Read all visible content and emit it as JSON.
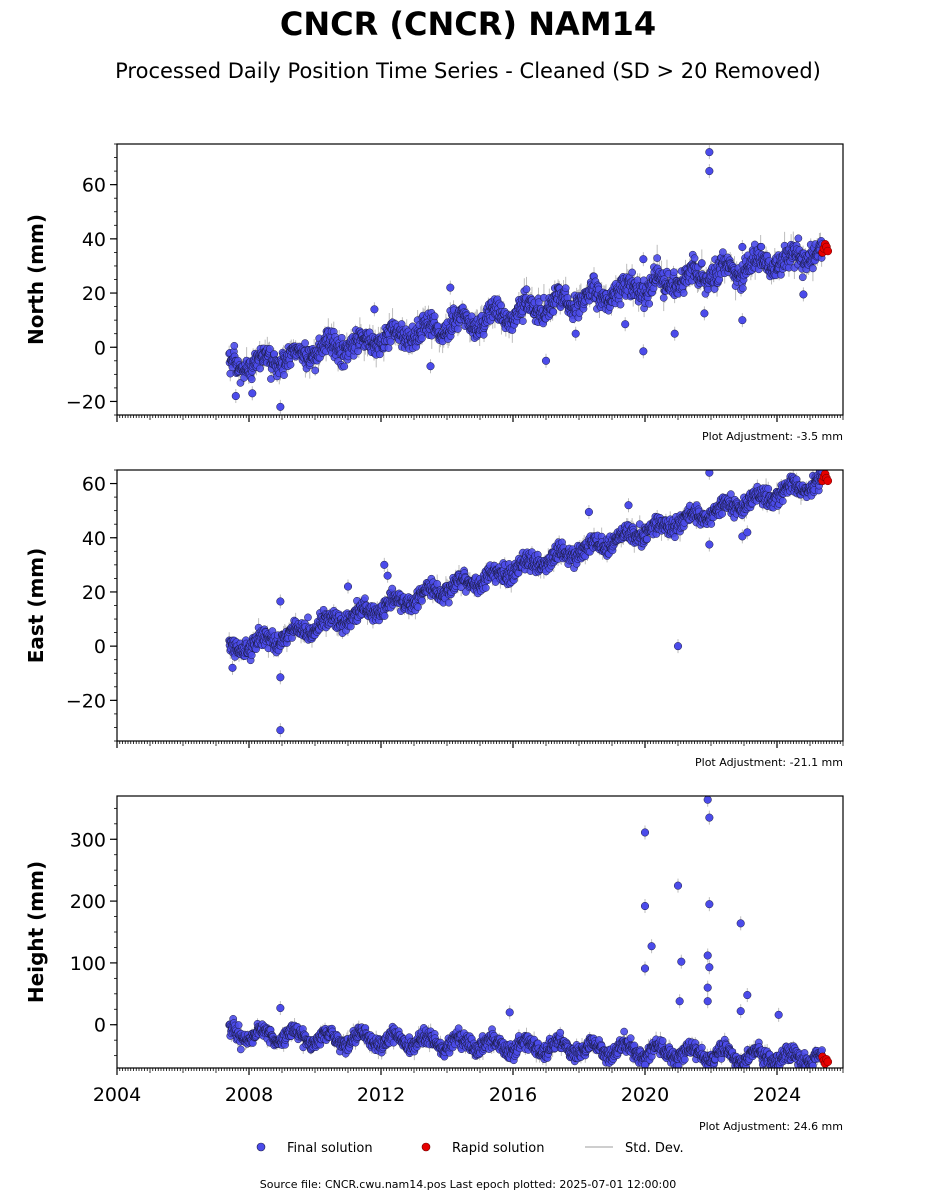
{
  "title": "CNCR (CNCR) NAM14",
  "subtitle": "Processed Daily Position Time Series - Cleaned (SD > 20 Removed)",
  "footer": "Source file: CNCR.cwu.nam14.pos  Last epoch plotted: 2025-07-01 12:00:00",
  "legend": {
    "final": "Final solution",
    "rapid": "Rapid solution",
    "std": "Std. Dev."
  },
  "colors": {
    "final": "#4b4bea",
    "rapid": "#e60000",
    "std": "#bdbdbd",
    "edge": "#1a1a40"
  },
  "chart_data": [
    {
      "type": "scatter",
      "ylabel": "North (mm)",
      "adjustment": "Plot Adjustment: -3.5 mm",
      "xlim": [
        2004,
        2026
      ],
      "ylim": [
        -25,
        75
      ],
      "yticks": [
        -20,
        0,
        20,
        40,
        60
      ],
      "xticks": [
        2004,
        2008,
        2012,
        2016,
        2020,
        2024
      ],
      "show_xtick_labels": false,
      "trend": {
        "start_year": 2007.4,
        "end_year": 2025.5,
        "start_value": -8,
        "end_value": 35.5
      },
      "seasonal_amplitude": 2.5,
      "noise": 2.2,
      "outliers": [
        [
          2021.95,
          72
        ],
        [
          2021.95,
          65
        ],
        [
          2008.95,
          -22
        ],
        [
          2014.1,
          22
        ],
        [
          2019.95,
          32.5
        ],
        [
          2019.95,
          -1.5
        ],
        [
          2022.95,
          37
        ],
        [
          2022.95,
          10
        ],
        [
          2024.8,
          19.5
        ],
        [
          2011.8,
          14
        ],
        [
          2017.9,
          5
        ],
        [
          2017.0,
          -5
        ],
        [
          2020.9,
          5
        ],
        [
          2021.8,
          12.5
        ],
        [
          2007.6,
          -18
        ],
        [
          2008.1,
          -17
        ],
        [
          2013.5,
          -7
        ],
        [
          2019.4,
          8.5
        ]
      ],
      "rapid": {
        "x": [
          2025.38,
          2025.42,
          2025.46,
          2025.5,
          2025.54
        ],
        "y": [
          35,
          36.5,
          38,
          37,
          35.5
        ]
      }
    },
    {
      "type": "scatter",
      "ylabel": "East (mm)",
      "adjustment": "Plot Adjustment: -21.1 mm",
      "xlim": [
        2004,
        2026
      ],
      "ylim": [
        -35,
        65
      ],
      "yticks": [
        -20,
        0,
        20,
        40,
        60
      ],
      "xticks": [
        2004,
        2008,
        2012,
        2016,
        2020,
        2024
      ],
      "show_xtick_labels": false,
      "trend": {
        "start_year": 2007.4,
        "end_year": 2025.5,
        "start_value": -2,
        "end_value": 61.5
      },
      "seasonal_amplitude": 1.8,
      "noise": 1.6,
      "outliers": [
        [
          2008.95,
          -31
        ],
        [
          2008.95,
          -11.5
        ],
        [
          2008.95,
          16.5
        ],
        [
          2021.0,
          0
        ],
        [
          2021.95,
          64
        ],
        [
          2021.95,
          37.5
        ],
        [
          2012.1,
          30
        ],
        [
          2012.2,
          26
        ],
        [
          2011.0,
          22
        ],
        [
          2018.3,
          49.5
        ],
        [
          2022.95,
          40.5
        ],
        [
          2023.1,
          42
        ],
        [
          2019.5,
          52
        ],
        [
          2007.5,
          -8
        ]
      ],
      "rapid": {
        "x": [
          2025.38,
          2025.42,
          2025.46,
          2025.5,
          2025.54
        ],
        "y": [
          61,
          62.5,
          63.5,
          62,
          61
        ]
      }
    },
    {
      "type": "scatter",
      "ylabel": "Height (mm)",
      "adjustment": "Plot Adjustment: 24.6 mm",
      "xlim": [
        2004,
        2026
      ],
      "ylim": [
        -70,
        370
      ],
      "yticks": [
        0,
        100,
        200,
        300
      ],
      "xticks": [
        2004,
        2008,
        2012,
        2016,
        2020,
        2024
      ],
      "show_xtick_labels": true,
      "trend": {
        "start_year": 2007.4,
        "end_year": 2025.5,
        "start_value": -15,
        "end_value": -55
      },
      "seasonal_amplitude": 10,
      "noise": 6,
      "outliers": [
        [
          2020.0,
          311
        ],
        [
          2020.0,
          192
        ],
        [
          2020.0,
          91
        ],
        [
          2020.2,
          127
        ],
        [
          2021.0,
          225
        ],
        [
          2021.1,
          102
        ],
        [
          2021.05,
          38
        ],
        [
          2021.9,
          364
        ],
        [
          2021.95,
          335
        ],
        [
          2021.95,
          195
        ],
        [
          2021.9,
          112
        ],
        [
          2021.95,
          93
        ],
        [
          2021.9,
          60
        ],
        [
          2021.9,
          38
        ],
        [
          2022.9,
          164
        ],
        [
          2023.1,
          48
        ],
        [
          2022.9,
          22
        ],
        [
          2024.05,
          16
        ],
        [
          2008.95,
          27
        ],
        [
          2015.9,
          20
        ],
        [
          2020.0,
          -65
        ]
      ],
      "rapid": {
        "x": [
          2025.38,
          2025.42,
          2025.46,
          2025.5,
          2025.54
        ],
        "y": [
          -52,
          -58,
          -63,
          -56,
          -60
        ]
      }
    }
  ]
}
